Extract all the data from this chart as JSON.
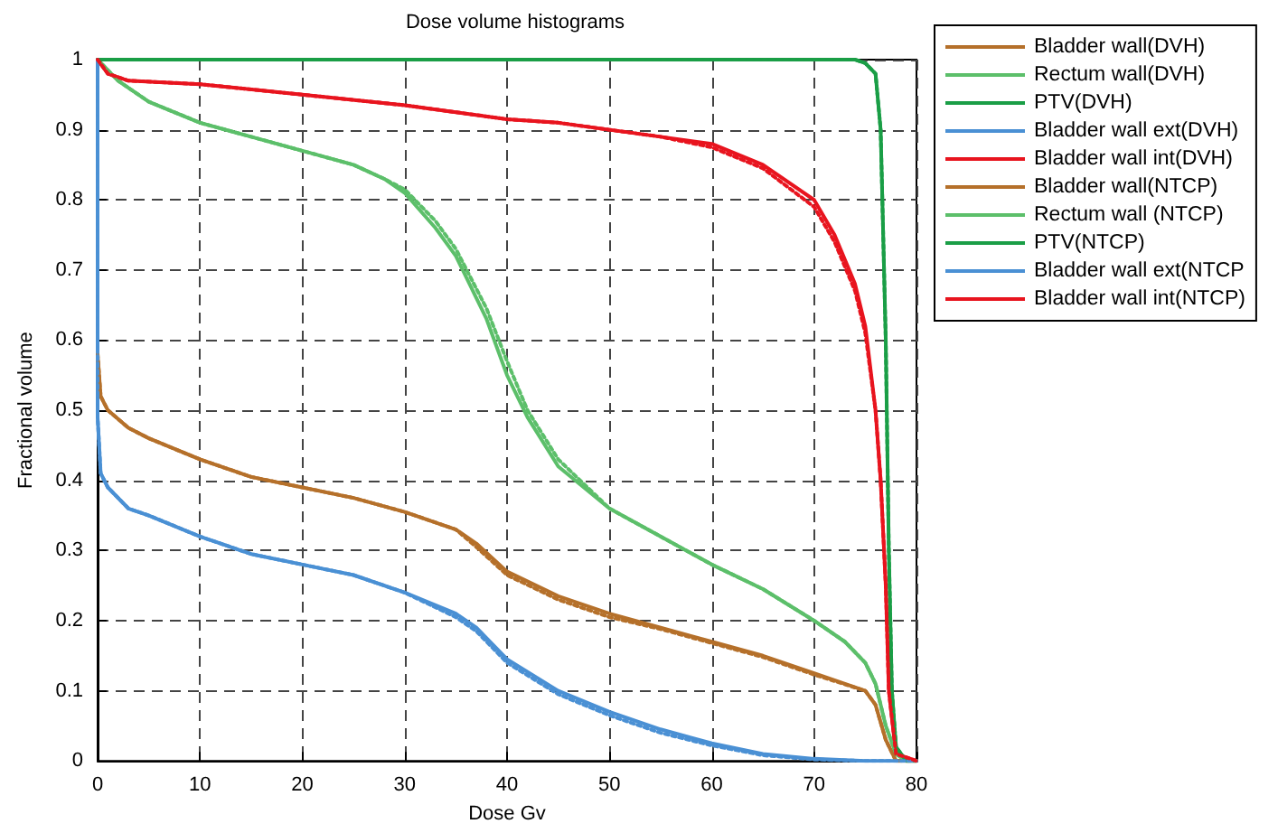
{
  "chart_data": {
    "type": "line",
    "title": "Dose volume histograms",
    "xlabel": "Dose Gv",
    "ylabel": "Fractional volume",
    "xlim": [
      0,
      80
    ],
    "ylim": [
      0,
      1
    ],
    "xticks": [
      0,
      10,
      20,
      30,
      40,
      50,
      60,
      70,
      80
    ],
    "yticks": [
      0,
      0.1,
      0.2,
      0.3,
      0.4,
      0.5,
      0.6,
      0.7,
      0.8,
      0.9,
      1
    ],
    "grid": true,
    "legend": "top right",
    "marker": "none",
    "series": [
      {
        "name": "Bladder wall(DVH)",
        "color": "#b5702a",
        "line_style": "solid",
        "x": [
          0,
          0.3,
          1,
          3,
          5,
          10,
          15,
          20,
          25,
          30,
          35,
          37,
          40,
          45,
          50,
          55,
          60,
          65,
          70,
          75,
          76,
          77,
          78,
          80
        ],
        "values": [
          0.58,
          0.52,
          0.5,
          0.475,
          0.46,
          0.43,
          0.405,
          0.39,
          0.375,
          0.355,
          0.33,
          0.31,
          0.27,
          0.235,
          0.21,
          0.19,
          0.17,
          0.15,
          0.125,
          0.1,
          0.08,
          0.03,
          0,
          0
        ]
      },
      {
        "name": "Rectum wall(DVH)",
        "color": "#5cbf6a",
        "line_style": "solid",
        "x": [
          0,
          2,
          5,
          10,
          15,
          20,
          25,
          28,
          30,
          33,
          35,
          38,
          40,
          42,
          45,
          50,
          55,
          60,
          65,
          70,
          73,
          75,
          76,
          77,
          78,
          79,
          80
        ],
        "values": [
          1,
          0.97,
          0.94,
          0.91,
          0.89,
          0.87,
          0.85,
          0.83,
          0.81,
          0.76,
          0.72,
          0.63,
          0.55,
          0.49,
          0.42,
          0.36,
          0.32,
          0.28,
          0.245,
          0.2,
          0.17,
          0.14,
          0.11,
          0.05,
          0.01,
          0,
          0
        ]
      },
      {
        "name": "PTV(DVH)",
        "color": "#1a9e46",
        "line_style": "solid",
        "x": [
          0,
          74,
          75,
          76,
          76.5,
          77,
          77.3,
          77.6,
          78,
          79,
          80
        ],
        "values": [
          1,
          1,
          0.995,
          0.98,
          0.9,
          0.6,
          0.3,
          0.1,
          0.02,
          0,
          0
        ]
      },
      {
        "name": "Bladder wall ext(DVH)",
        "color": "#4a90d4",
        "line_style": "solid",
        "x": [
          0,
          0,
          0.3,
          1,
          3,
          5,
          10,
          15,
          20,
          25,
          30,
          35,
          37,
          40,
          45,
          50,
          55,
          60,
          65,
          70,
          75,
          80
        ],
        "values": [
          1,
          0.49,
          0.41,
          0.39,
          0.36,
          0.35,
          0.32,
          0.295,
          0.28,
          0.265,
          0.24,
          0.21,
          0.19,
          0.145,
          0.1,
          0.07,
          0.045,
          0.025,
          0.01,
          0.003,
          0,
          0
        ]
      },
      {
        "name": "Bladder wall int(DVH)",
        "color": "#e8141e",
        "line_style": "solid",
        "x": [
          0,
          1,
          3,
          10,
          20,
          30,
          35,
          40,
          45,
          50,
          55,
          60,
          65,
          70,
          72,
          74,
          75,
          76,
          76.5,
          77,
          77.3,
          78,
          80
        ],
        "values": [
          1,
          0.98,
          0.97,
          0.965,
          0.95,
          0.935,
          0.925,
          0.915,
          0.91,
          0.9,
          0.89,
          0.88,
          0.85,
          0.8,
          0.75,
          0.68,
          0.62,
          0.5,
          0.4,
          0.25,
          0.1,
          0.01,
          0
        ]
      },
      {
        "name": "Bladder wall(NTCP)",
        "color": "#b5702a",
        "line_style": "dotted",
        "x": [
          0,
          0.3,
          1,
          3,
          5,
          10,
          15,
          20,
          25,
          30,
          35,
          37,
          40,
          45,
          50,
          55,
          60,
          65,
          70,
          75,
          76,
          77,
          78,
          80
        ],
        "values": [
          0.58,
          0.52,
          0.5,
          0.475,
          0.46,
          0.43,
          0.405,
          0.39,
          0.375,
          0.355,
          0.33,
          0.305,
          0.265,
          0.23,
          0.205,
          0.188,
          0.168,
          0.148,
          0.123,
          0.1,
          0.08,
          0.03,
          0,
          0
        ]
      },
      {
        "name": "Rectum wall (NTCP)",
        "color": "#5cbf6a",
        "line_style": "dotted",
        "x": [
          0,
          2,
          5,
          10,
          15,
          20,
          25,
          28,
          30,
          33,
          35,
          38,
          40,
          42,
          45,
          50,
          55,
          60,
          65,
          70,
          73,
          75,
          76,
          77,
          78,
          79,
          80
        ],
        "values": [
          1,
          0.97,
          0.94,
          0.91,
          0.89,
          0.87,
          0.85,
          0.83,
          0.815,
          0.77,
          0.73,
          0.645,
          0.57,
          0.5,
          0.43,
          0.36,
          0.32,
          0.28,
          0.245,
          0.2,
          0.17,
          0.14,
          0.11,
          0.05,
          0.01,
          0,
          0
        ]
      },
      {
        "name": "PTV(NTCP)",
        "color": "#1a9e46",
        "line_style": "dotted",
        "x": [
          0,
          74,
          75,
          76,
          76.5,
          77,
          77.3,
          77.6,
          78,
          79,
          80
        ],
        "values": [
          1,
          1,
          0.995,
          0.98,
          0.9,
          0.6,
          0.3,
          0.1,
          0.02,
          0,
          0
        ]
      },
      {
        "name": "Bladder wall ext(NTCP",
        "color": "#4a90d4",
        "line_style": "dotted",
        "x": [
          0,
          0,
          0.3,
          1,
          3,
          5,
          10,
          15,
          20,
          25,
          30,
          35,
          37,
          40,
          45,
          50,
          55,
          60,
          65,
          70,
          75,
          80
        ],
        "values": [
          1,
          0.49,
          0.41,
          0.39,
          0.36,
          0.35,
          0.32,
          0.295,
          0.28,
          0.265,
          0.24,
          0.205,
          0.185,
          0.14,
          0.095,
          0.065,
          0.04,
          0.022,
          0.008,
          0.002,
          0,
          0
        ]
      },
      {
        "name": "Bladder wall int(NTCP)",
        "color": "#e8141e",
        "line_style": "dotted",
        "x": [
          0,
          1,
          3,
          10,
          20,
          30,
          35,
          40,
          45,
          50,
          55,
          60,
          65,
          70,
          72,
          74,
          75,
          76,
          76.5,
          77,
          77.3,
          78,
          80
        ],
        "values": [
          1,
          0.98,
          0.97,
          0.965,
          0.95,
          0.935,
          0.925,
          0.915,
          0.91,
          0.9,
          0.89,
          0.875,
          0.845,
          0.79,
          0.74,
          0.67,
          0.61,
          0.5,
          0.4,
          0.25,
          0.1,
          0.01,
          0
        ]
      }
    ]
  }
}
